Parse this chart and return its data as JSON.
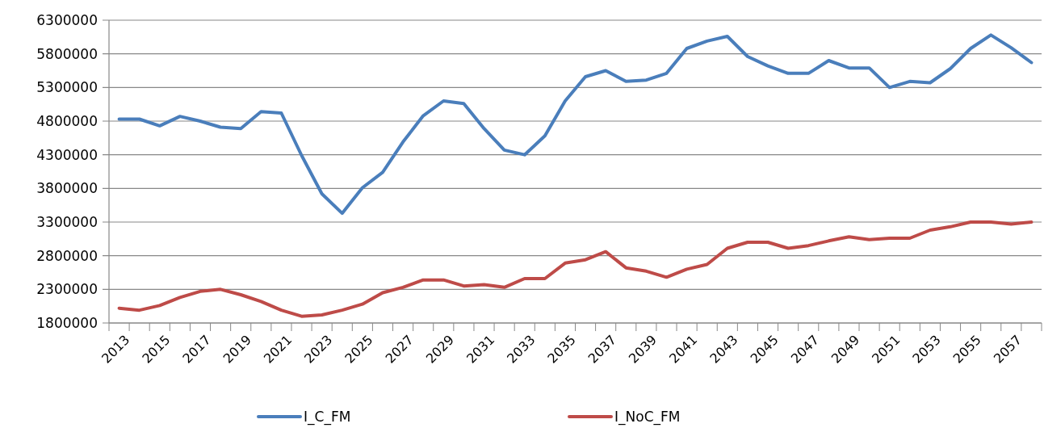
{
  "chart_data": {
    "type": "line",
    "categories": [
      "2013",
      null,
      "2015",
      null,
      "2017",
      null,
      "2019",
      null,
      "2021",
      null,
      "2023",
      null,
      "2025",
      null,
      "2027",
      null,
      "2029",
      null,
      "2031",
      null,
      "2033",
      null,
      "2035",
      null,
      "2037",
      null,
      "2039",
      null,
      "2041",
      null,
      "2043",
      null,
      "2045",
      null,
      "2047",
      null,
      "2049",
      null,
      "2051",
      null,
      "2053",
      null,
      "2055",
      null,
      "2057",
      null
    ],
    "series": [
      {
        "name": "I_C_FM",
        "color": "#4a7ebb",
        "values": [
          4830000,
          4830000,
          4730000,
          4870000,
          4800000,
          4710000,
          4690000,
          4940000,
          4920000,
          4290000,
          3720000,
          3430000,
          3810000,
          4040000,
          4490000,
          4880000,
          5100000,
          5060000,
          4690000,
          4370000,
          4300000,
          4580000,
          5100000,
          5460000,
          5550000,
          5390000,
          5410000,
          5510000,
          5880000,
          5990000,
          6060000,
          5760000,
          5620000,
          5510000,
          5510000,
          5700000,
          5590000,
          5590000,
          5300000,
          5390000,
          5370000,
          5580000,
          5880000,
          6080000,
          5890000,
          5670000
        ]
      },
      {
        "name": "I_NoC_FM",
        "color": "#be4b48",
        "values": [
          2020000,
          1990000,
          2060000,
          2180000,
          2270000,
          2300000,
          2220000,
          2120000,
          1990000,
          1900000,
          1920000,
          1990000,
          2080000,
          2250000,
          2330000,
          2440000,
          2440000,
          2350000,
          2370000,
          2330000,
          2460000,
          2460000,
          2690000,
          2740000,
          2860000,
          2620000,
          2570000,
          2480000,
          2600000,
          2670000,
          2910000,
          3000000,
          3000000,
          2910000,
          2950000,
          3020000,
          3080000,
          3040000,
          3060000,
          3060000,
          3180000,
          3230000,
          3300000,
          3300000,
          3270000,
          3300000
        ]
      }
    ],
    "ylim": [
      1800000,
      6300000
    ],
    "yticks": [
      1800000,
      2300000,
      2800000,
      3300000,
      3800000,
      4300000,
      4800000,
      5300000,
      5800000,
      6300000
    ],
    "grid": "y",
    "legend": "bottom",
    "marker": "none",
    "line_style": "solid"
  }
}
